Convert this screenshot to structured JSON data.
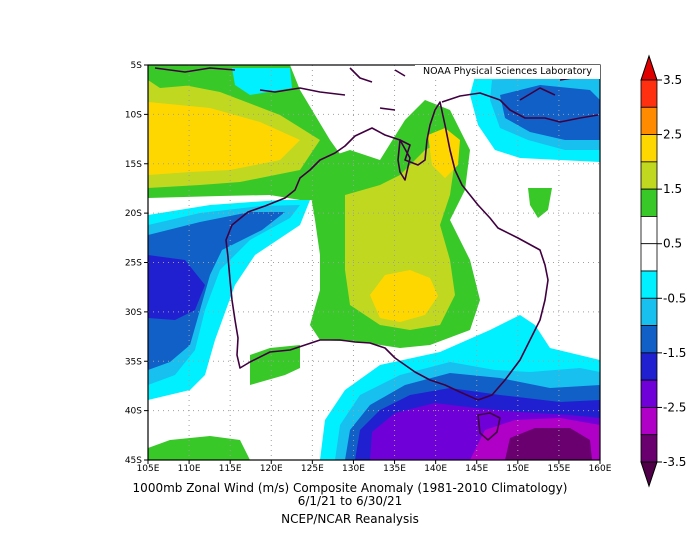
{
  "map": {
    "credit": "NOAA Physical Sciences Laboratory",
    "lon_ticks": [
      "105E",
      "110E",
      "115E",
      "120E",
      "125E",
      "130E",
      "135E",
      "140E",
      "145E",
      "150E",
      "155E",
      "160E"
    ],
    "lat_ticks": [
      "5S",
      "10S",
      "15S",
      "20S",
      "25S",
      "30S",
      "35S",
      "40S",
      "45S"
    ],
    "lon_range": [
      105,
      160
    ],
    "lat_range": [
      -5,
      -45
    ],
    "grid": "dotted"
  },
  "caption": {
    "line1": "1000mb Zonal Wind (m/s) Composite Anomaly (1981-2010 Climatology)",
    "line2": "6/1/21   to 6/30/21",
    "line3": "NCEP/NCAR Reanalysis"
  },
  "colorbar": {
    "labels": [
      "3.5",
      "2.5",
      "1.5",
      "0.5",
      "-0.5",
      "-1.5",
      "-2.5",
      "-3.5"
    ],
    "colors": [
      "#ff3010",
      "#ff8c00",
      "#ffd700",
      "#c0d820",
      "#38c828",
      "#ffffff",
      "#ffffff",
      "#00f0ff",
      "#18c0f0",
      "#1060c8",
      "#2020d0",
      "#7000d8",
      "#b000c8",
      "#6a0070"
    ],
    "top_color": "#e00000",
    "bottom_color": "#500048"
  },
  "colors": {
    "coast": "#400040",
    "grid": "#a0a0a0"
  }
}
